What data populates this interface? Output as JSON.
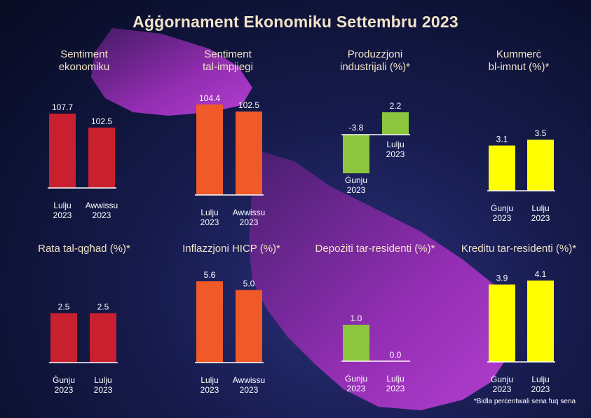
{
  "title": "Aġġornament Ekonomiku Settembru 2023",
  "footnote": "*Bidla perċentwali sena fuq sena",
  "colors": {
    "red": "#c8202e",
    "orange": "#f05a28",
    "green": "#8cc63f",
    "yellow": "#ffff00",
    "map": "#8b2fa8",
    "text": "#f2e3c8"
  },
  "chart_data": [
    {
      "type": "bar",
      "title": "Sentiment\nekonomiku",
      "categories": [
        "Lulju\n2023",
        "Awwissu\n2023"
      ],
      "values": [
        107.7,
        102.5
      ],
      "labels": [
        "107.7",
        "102.5"
      ],
      "color": "#c8202e"
    },
    {
      "type": "bar",
      "title": "Sentiment\ntal-impjiegi",
      "categories": [
        "Lulju\n2023",
        "Awwissu\n2023"
      ],
      "values": [
        104.4,
        102.5
      ],
      "labels": [
        "104.4",
        "102.5"
      ],
      "color": "#f05a28"
    },
    {
      "type": "bar",
      "title": "Produzzjoni\nindustrijali (%)*",
      "categories": [
        "Ġunju\n2023",
        "Lulju\n2023"
      ],
      "values": [
        -3.8,
        2.2
      ],
      "labels": [
        "-3.8",
        "2.2"
      ],
      "color": "#8cc63f"
    },
    {
      "type": "bar",
      "title": "Kummerċ\nbl-imnut (%)*",
      "categories": [
        "Ġunju\n2023",
        "Lulju\n2023"
      ],
      "values": [
        3.1,
        3.5
      ],
      "labels": [
        "3.1",
        "3.5"
      ],
      "color": "#ffff00"
    },
    {
      "type": "bar",
      "title": "Rata tal-qgħad (%)*",
      "categories": [
        "Ġunju\n2023",
        "Lulju\n2023"
      ],
      "values": [
        2.5,
        2.5
      ],
      "labels": [
        "2.5",
        "2.5"
      ],
      "color": "#c8202e"
    },
    {
      "type": "bar",
      "title": "Inflazzjoni HICP (%)*",
      "categories": [
        "Lulju\n2023",
        "Awwissu\n2023"
      ],
      "values": [
        5.6,
        5.0
      ],
      "labels": [
        "5.6",
        "5.0"
      ],
      "color": "#f05a28"
    },
    {
      "type": "bar",
      "title": "Depożiti tar-residenti (%)*",
      "categories": [
        "Ġunju\n2023",
        "Lulju\n2023"
      ],
      "values": [
        1.0,
        0.0
      ],
      "labels": [
        "1.0",
        "0.0"
      ],
      "color": "#8cc63f"
    },
    {
      "type": "bar",
      "title": "Kreditu tar-residenti (%)*",
      "categories": [
        "Ġunju\n2023",
        "Lulju\n2023"
      ],
      "values": [
        3.9,
        4.1
      ],
      "labels": [
        "3.9",
        "4.1"
      ],
      "color": "#ffff00"
    }
  ]
}
